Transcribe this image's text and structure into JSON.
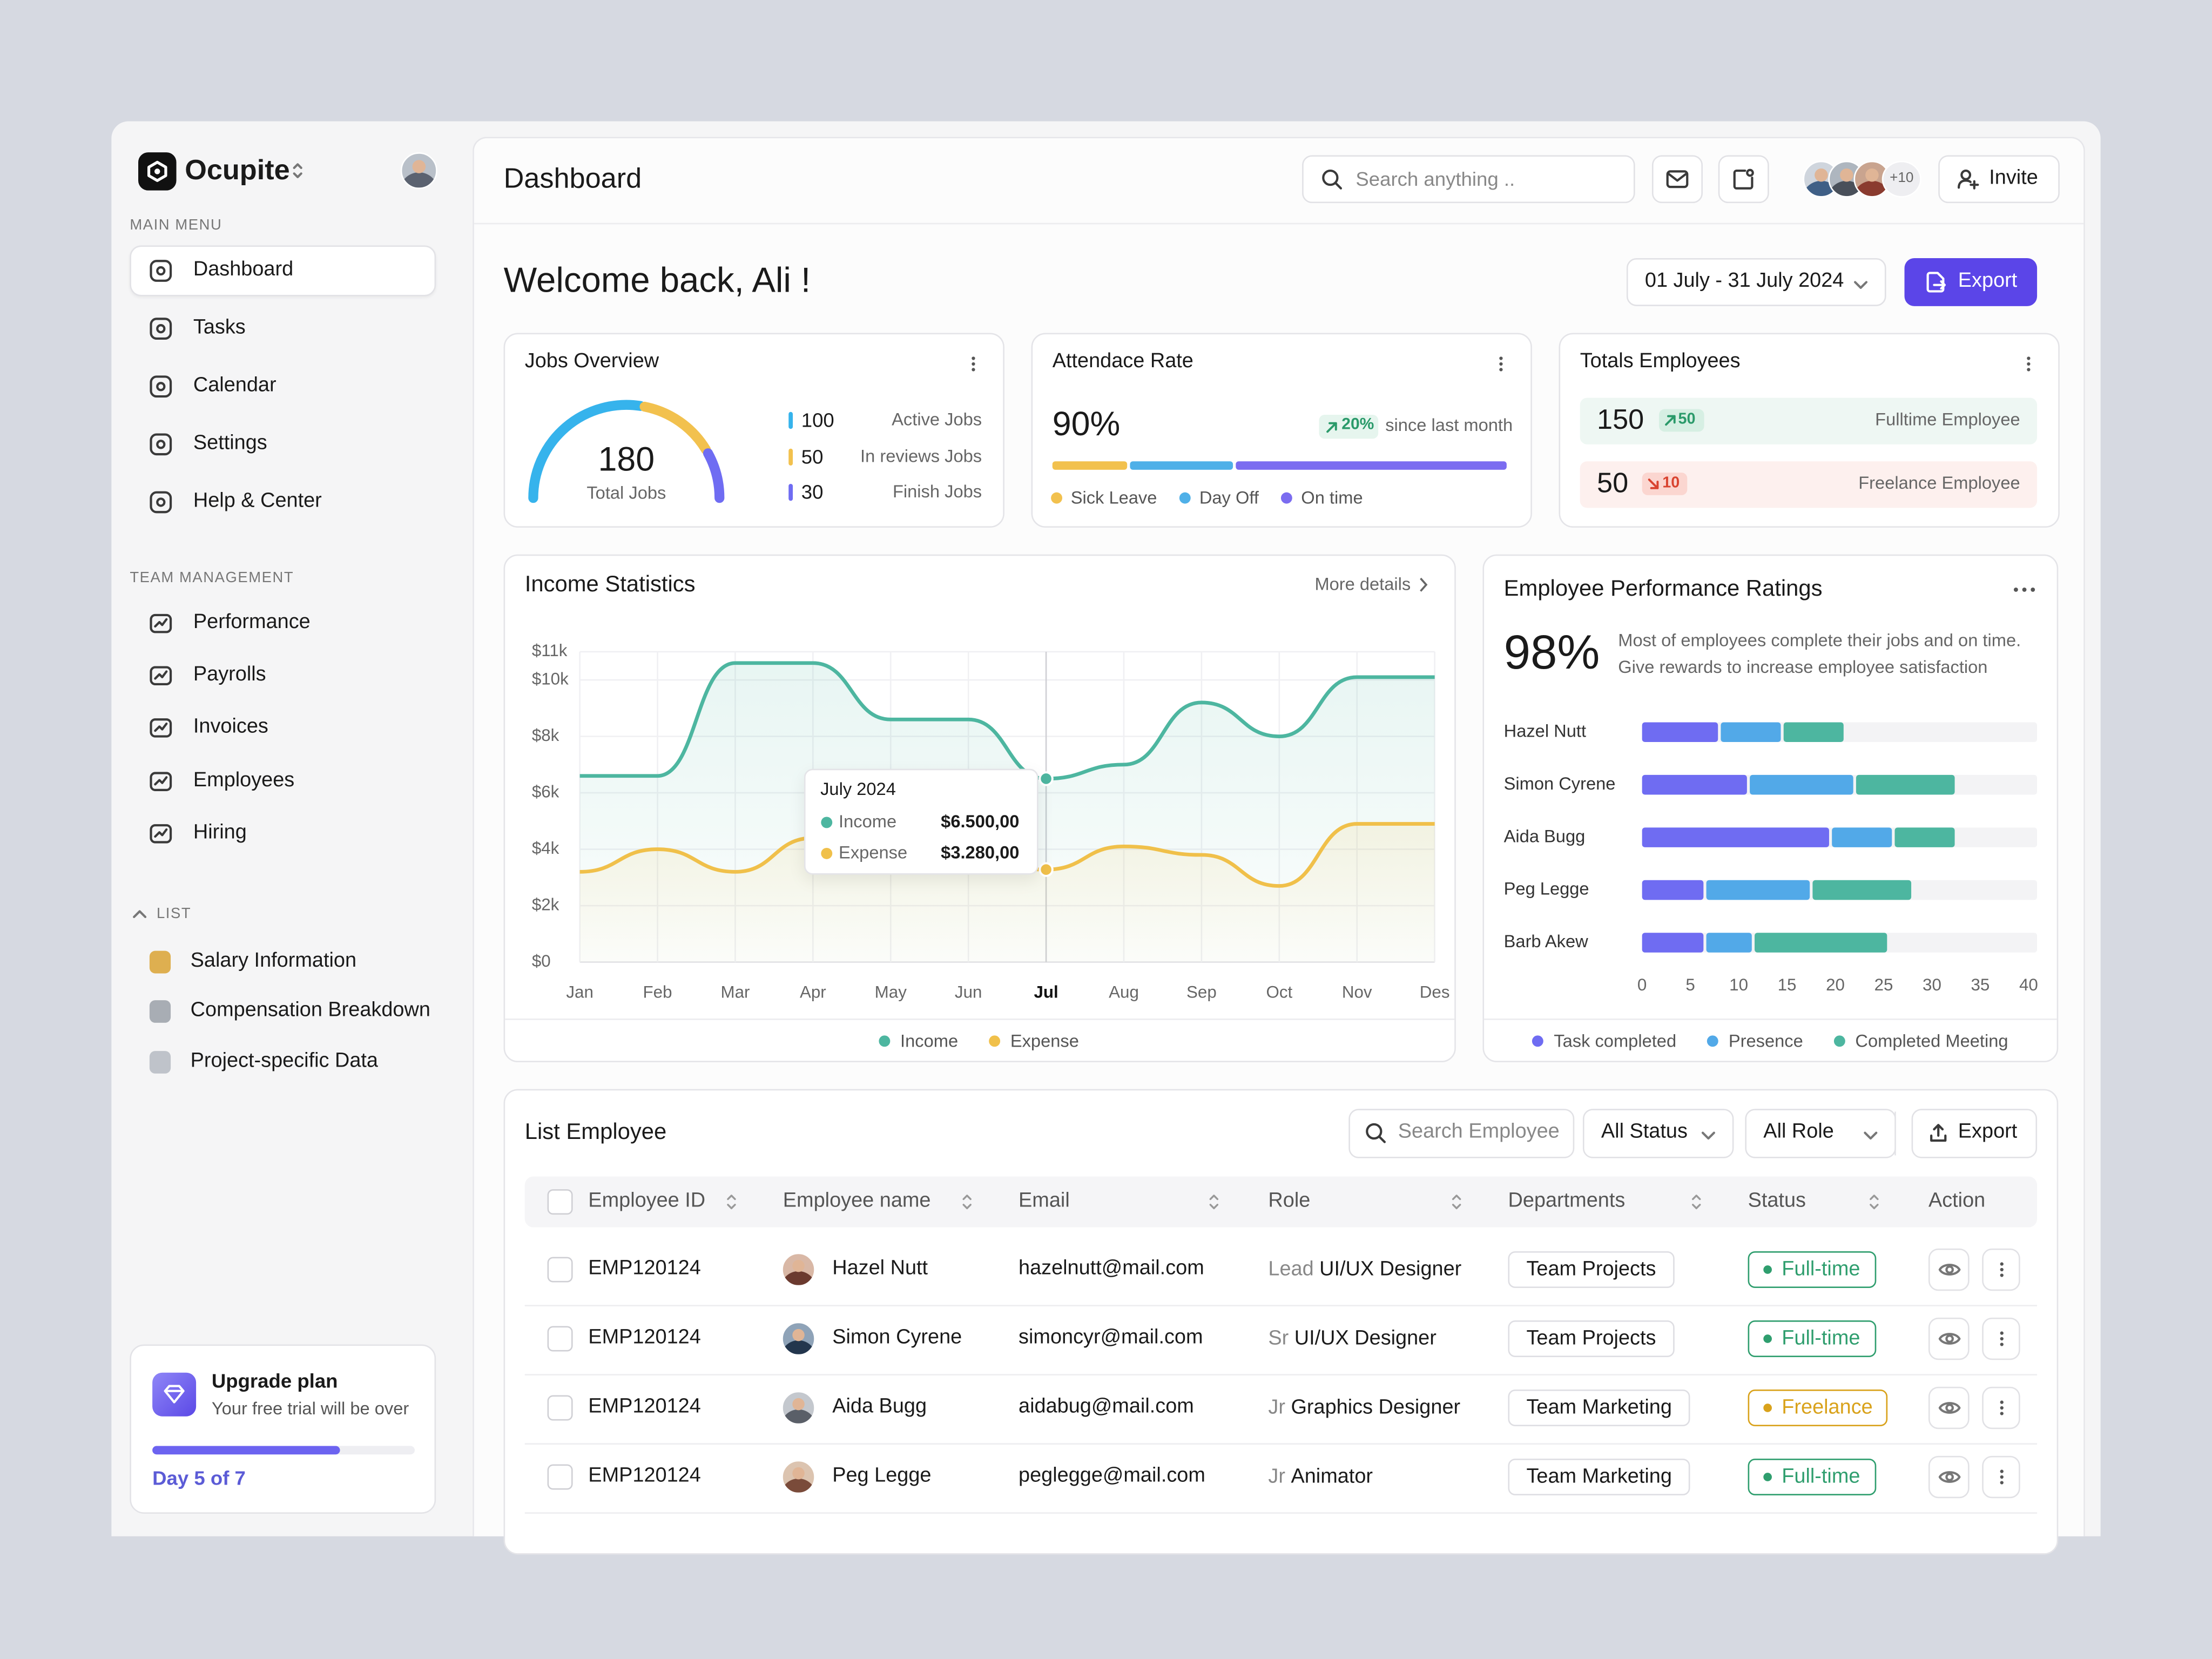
{
  "sidebar": {
    "brand": "Ocupite",
    "main_menu_title": "MAIN MENU",
    "main_menu": [
      "Dashboard",
      "Tasks",
      "Calendar",
      "Settings",
      "Help & Center"
    ],
    "team_title": "TEAM MANAGEMENT",
    "team_menu": [
      "Performance",
      "Payrolls",
      "Invoices",
      "Employees",
      "Hiring"
    ],
    "list_title": "LIST",
    "list_items": [
      "Salary Information",
      "Compensation Breakdown",
      "Project-specific Data"
    ],
    "upgrade": {
      "title": "Upgrade plan",
      "text": "Your free trial will be over",
      "progress": "Day 5 of 7"
    }
  },
  "header": {
    "title": "Dashboard",
    "search": "Search anything ..",
    "more_avatars": "+10",
    "invite": "Invite"
  },
  "welcome": {
    "title": "Welcome back, Ali !",
    "date_range": "01 July - 31 July 2024",
    "export": "Export"
  },
  "jobs_overview": {
    "title": "Jobs Overview",
    "total": 180,
    "total_label": "Total Jobs",
    "items": [
      {
        "value": 100,
        "label": "Active Jobs",
        "color": "#36b3ec"
      },
      {
        "value": 50,
        "label": "In reviews Jobs",
        "color": "#f2c14e"
      },
      {
        "value": 30,
        "label": "Finish Jobs",
        "color": "#6f6cf2"
      }
    ]
  },
  "attendance": {
    "title": "Attendace Rate",
    "rate": "90%",
    "change": "20%",
    "change_text": "since last month",
    "segments": [
      {
        "name": "Sick Leave",
        "value": 17,
        "color": "#f2c14e"
      },
      {
        "name": "Day Off",
        "value": 23,
        "color": "#4fb0e8"
      },
      {
        "name": "On time",
        "value": 60,
        "color": "#7b6cf0"
      }
    ]
  },
  "total_employees": {
    "title": "Totals Employees",
    "rows": [
      {
        "value": 150,
        "change": 50,
        "label": "Fulltime Employee"
      },
      {
        "value": 50,
        "change": 10,
        "label": "Freelance Employee"
      }
    ]
  },
  "chart_data": [
    {
      "type": "line",
      "title": "Income Statistics",
      "link": "More details",
      "categories": [
        "Jan",
        "Feb",
        "Mar",
        "Apr",
        "May",
        "Jun",
        "Jul",
        "Aug",
        "Sep",
        "Oct",
        "Nov",
        "Des"
      ],
      "series": [
        {
          "name": "Income",
          "color": "#4db6a0",
          "values": [
            6600,
            6600,
            10600,
            10600,
            8600,
            8600,
            6500,
            7000,
            9200,
            8000,
            10100,
            10100
          ],
          "value_labels": [
            null,
            null,
            null,
            null,
            null,
            null,
            "$6.500,00",
            null,
            null,
            null,
            null,
            null
          ]
        },
        {
          "name": "Expense",
          "color": "#f0c04a",
          "values": [
            3200,
            4000,
            3200,
            4400,
            3200,
            3600,
            3280,
            4100,
            3800,
            2700,
            4900,
            4900
          ],
          "value_labels": [
            null,
            null,
            null,
            null,
            null,
            null,
            "$3.280,00",
            null,
            null,
            null,
            null,
            null
          ]
        }
      ],
      "tooltip_title": "July 2024",
      "ylim": [
        0,
        11000
      ],
      "yticks": [
        {
          "value": 0,
          "label": "$0"
        },
        {
          "value": 2000,
          "label": "$2k"
        },
        {
          "value": 4000,
          "label": "$4k"
        },
        {
          "value": 6000,
          "label": "$6k"
        },
        {
          "value": 8000,
          "label": "$8k"
        },
        {
          "value": 10000,
          "label": "$10k"
        },
        {
          "value": 11000,
          "label": "$11k"
        }
      ],
      "grid": true,
      "legend": "bottom"
    },
    {
      "type": "bar",
      "orientation": "horizontal",
      "stacked": true,
      "title": "Employee Performance Ratings",
      "headline": "98%",
      "description": "Most of employees complete their jobs and on time. Give rewards to increase employee satisfaction",
      "categories": [
        "Hazel Nutt",
        "Simon Cyrene",
        "Aida Bugg",
        "Peg Legge",
        "Barb Akew"
      ],
      "series": [
        {
          "name": "Task completed",
          "color": "#6f6cf2",
          "values": [
            8,
            11,
            19.5,
            6.5,
            6.5
          ]
        },
        {
          "name": "Presence",
          "color": "#52a9e8",
          "values": [
            6.5,
            11,
            6.5,
            11,
            5
          ]
        },
        {
          "name": "Completed Meeting",
          "color": "#4db6a0",
          "values": [
            6.5,
            10.5,
            6.5,
            10.5,
            14
          ]
        }
      ],
      "xlim": [
        0,
        40
      ],
      "xticks": [
        0,
        5,
        10,
        15,
        20,
        25,
        30,
        35,
        40
      ],
      "legend": "bottom"
    }
  ],
  "table": {
    "title": "List Employee",
    "search": "Search Employee",
    "filters": [
      "All Status",
      "All Role"
    ],
    "export": "Export",
    "columns": [
      "Employee ID",
      "Employee name",
      "Email",
      "Role",
      "Departments",
      "Status",
      "Action"
    ],
    "rows": [
      {
        "id": "EMP120124",
        "name": "Hazel Nutt",
        "email": "hazelnutt@mail.com",
        "level": "Lead",
        "role": "UI/UX Designer",
        "department": "Team Projects",
        "status": "Full-time",
        "status_color": "#2f9e6e"
      },
      {
        "id": "EMP120124",
        "name": "Simon Cyrene",
        "email": "simoncyr@mail.com",
        "level": "Sr",
        "role": "UI/UX Designer",
        "department": "Team Projects",
        "status": "Full-time",
        "status_color": "#2f9e6e"
      },
      {
        "id": "EMP120124",
        "name": "Aida Bugg",
        "email": "aidabug@mail.com",
        "level": "Jr",
        "role": "Graphics Designer",
        "department": "Team Marketing",
        "status": "Freelance",
        "status_color": "#d9a21b"
      },
      {
        "id": "EMP120124",
        "name": "Peg Legge",
        "email": "peglegge@mail.com",
        "level": "Jr",
        "role": "Animator",
        "department": "Team Marketing",
        "status": "Full-time",
        "status_color": "#2f9e6e"
      }
    ]
  }
}
